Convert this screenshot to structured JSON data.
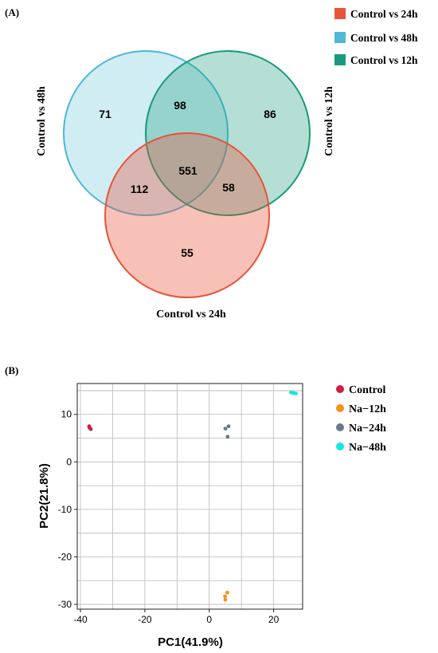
{
  "panel_a": {
    "label": "(A)",
    "chart_data": {
      "type": "venn",
      "sets": [
        {
          "name": "Control vs 24h",
          "color": "#e8533a"
        },
        {
          "name": "Control vs 48h",
          "color": "#4fb8d6"
        },
        {
          "name": "Control vs 12h",
          "color": "#1a9a7c"
        }
      ],
      "regions": {
        "only_48h": 71,
        "48h_12h": 98,
        "only_12h": 86,
        "all_three": 551,
        "48h_24h": 112,
        "24h_12h": 58,
        "only_24h": 55
      }
    }
  },
  "panel_b": {
    "label": "(B)",
    "chart_data": {
      "type": "scatter",
      "xlabel": "PC1(41.9%)",
      "ylabel": "PC2(21.8%)",
      "xlim": [
        -41,
        29
      ],
      "ylim": [
        -31,
        16.5
      ],
      "xticks": [
        -40,
        -20,
        0,
        20
      ],
      "yticks": [
        10,
        0,
        -10,
        -20,
        -30
      ],
      "grid": true,
      "legend_position": "right",
      "series": [
        {
          "name": "Control",
          "color": "#d11f3f",
          "points": [
            [
              -37.3,
              7.5
            ],
            [
              -37.2,
              7.2
            ],
            [
              -36.8,
              6.9
            ]
          ]
        },
        {
          "name": "Na−12h",
          "color": "#f39217",
          "points": [
            [
              5.6,
              -27.5
            ],
            [
              4.9,
              -28.3
            ],
            [
              5.0,
              -29.0
            ]
          ]
        },
        {
          "name": "Na−24h",
          "color": "#68788f",
          "points": [
            [
              5.0,
              7.0
            ],
            [
              6.0,
              7.5
            ],
            [
              5.7,
              5.3
            ]
          ]
        },
        {
          "name": "Na−48h",
          "color": "#14e8e6",
          "points": [
            [
              25.4,
              14.6
            ],
            [
              26.2,
              14.5
            ],
            [
              26.9,
              14.4
            ]
          ]
        }
      ]
    }
  }
}
